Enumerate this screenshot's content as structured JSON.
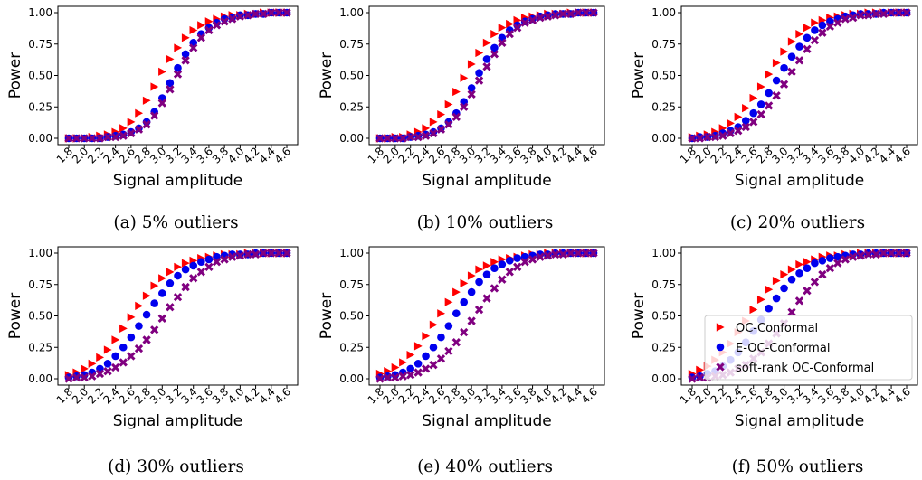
{
  "chart_data": [
    {
      "type": "scatter",
      "caption": "(a) 5% outliers",
      "xlabel": "Signal amplitude",
      "ylabel": "Power",
      "x": [
        1.8,
        1.9,
        2.0,
        2.1,
        2.2,
        2.3,
        2.4,
        2.5,
        2.6,
        2.7,
        2.8,
        2.9,
        3.0,
        3.1,
        3.2,
        3.3,
        3.4,
        3.5,
        3.6,
        3.7,
        3.8,
        3.9,
        4.0,
        4.1,
        4.2,
        4.3,
        4.4,
        4.5,
        4.6
      ],
      "xticks": [
        "1.8",
        "2.0",
        "2.2",
        "2.4",
        "2.6",
        "2.8",
        "3.0",
        "3.2",
        "3.4",
        "3.6",
        "3.8",
        "4.0",
        "4.2",
        "4.4",
        "4.6"
      ],
      "yticks": [
        "0.00",
        "0.25",
        "0.50",
        "0.75",
        "1.00"
      ],
      "xlim": [
        1.8,
        4.6
      ],
      "ylim": [
        0,
        1
      ],
      "series": [
        {
          "name": "OC-Conformal",
          "color": "#ff0000",
          "marker": "triangle-right",
          "values": [
            0.0,
            0.0,
            0.0,
            0.01,
            0.02,
            0.03,
            0.05,
            0.08,
            0.13,
            0.2,
            0.3,
            0.41,
            0.53,
            0.63,
            0.72,
            0.8,
            0.86,
            0.9,
            0.93,
            0.95,
            0.97,
            0.98,
            0.98,
            0.99,
            0.99,
            1.0,
            1.0,
            1.0,
            1.0
          ]
        },
        {
          "name": "E-OC-Conformal",
          "color": "#0000ee",
          "marker": "circle",
          "values": [
            0.0,
            0.0,
            0.0,
            0.0,
            0.0,
            0.01,
            0.02,
            0.03,
            0.05,
            0.08,
            0.13,
            0.21,
            0.32,
            0.44,
            0.56,
            0.67,
            0.76,
            0.83,
            0.88,
            0.92,
            0.95,
            0.96,
            0.98,
            0.98,
            0.99,
            0.99,
            1.0,
            1.0,
            1.0
          ]
        },
        {
          "name": "soft-rank OC-Conformal",
          "color": "#800080",
          "marker": "x",
          "values": [
            0.0,
            0.0,
            0.0,
            0.0,
            0.0,
            0.01,
            0.01,
            0.02,
            0.04,
            0.07,
            0.11,
            0.18,
            0.28,
            0.39,
            0.51,
            0.62,
            0.72,
            0.8,
            0.86,
            0.9,
            0.93,
            0.95,
            0.97,
            0.98,
            0.99,
            0.99,
            1.0,
            1.0,
            1.0
          ]
        }
      ]
    },
    {
      "type": "scatter",
      "caption": "(b) 10% outliers",
      "xlabel": "Signal amplitude",
      "ylabel": "Power",
      "x": [
        1.8,
        1.9,
        2.0,
        2.1,
        2.2,
        2.3,
        2.4,
        2.5,
        2.6,
        2.7,
        2.8,
        2.9,
        3.0,
        3.1,
        3.2,
        3.3,
        3.4,
        3.5,
        3.6,
        3.7,
        3.8,
        3.9,
        4.0,
        4.1,
        4.2,
        4.3,
        4.4,
        4.5,
        4.6
      ],
      "xticks": [
        "1.8",
        "2.0",
        "2.2",
        "2.4",
        "2.6",
        "2.8",
        "3.0",
        "3.2",
        "3.4",
        "3.6",
        "3.8",
        "4.0",
        "4.2",
        "4.4",
        "4.6"
      ],
      "yticks": [
        "0.00",
        "0.25",
        "0.50",
        "0.75",
        "1.00"
      ],
      "xlim": [
        1.8,
        4.6
      ],
      "ylim": [
        0,
        1
      ],
      "series": [
        {
          "name": "OC-Conformal",
          "color": "#ff0000",
          "marker": "triangle-right",
          "values": [
            0.0,
            0.0,
            0.01,
            0.01,
            0.03,
            0.05,
            0.08,
            0.13,
            0.19,
            0.27,
            0.37,
            0.48,
            0.59,
            0.68,
            0.76,
            0.83,
            0.88,
            0.91,
            0.94,
            0.96,
            0.97,
            0.98,
            0.99,
            0.99,
            0.99,
            1.0,
            1.0,
            1.0,
            1.0
          ]
        },
        {
          "name": "E-OC-Conformal",
          "color": "#0000ee",
          "marker": "circle",
          "values": [
            0.0,
            0.0,
            0.0,
            0.0,
            0.01,
            0.02,
            0.03,
            0.05,
            0.08,
            0.13,
            0.2,
            0.29,
            0.4,
            0.52,
            0.63,
            0.72,
            0.8,
            0.86,
            0.9,
            0.93,
            0.95,
            0.97,
            0.98,
            0.99,
            0.99,
            0.99,
            1.0,
            1.0,
            1.0
          ]
        },
        {
          "name": "soft-rank OC-Conformal",
          "color": "#800080",
          "marker": "x",
          "values": [
            0.0,
            0.0,
            0.0,
            0.0,
            0.01,
            0.01,
            0.02,
            0.04,
            0.07,
            0.11,
            0.17,
            0.25,
            0.35,
            0.46,
            0.57,
            0.67,
            0.76,
            0.83,
            0.88,
            0.92,
            0.94,
            0.96,
            0.97,
            0.98,
            0.99,
            0.99,
            1.0,
            1.0,
            1.0
          ]
        }
      ]
    },
    {
      "type": "scatter",
      "caption": "(c) 20% outliers",
      "xlabel": "Signal amplitude",
      "ylabel": "Power",
      "x": [
        1.8,
        1.9,
        2.0,
        2.1,
        2.2,
        2.3,
        2.4,
        2.5,
        2.6,
        2.7,
        2.8,
        2.9,
        3.0,
        3.1,
        3.2,
        3.3,
        3.4,
        3.5,
        3.6,
        3.7,
        3.8,
        3.9,
        4.0,
        4.1,
        4.2,
        4.3,
        4.4,
        4.5,
        4.6
      ],
      "xticks": [
        "1.8",
        "2.0",
        "2.2",
        "2.4",
        "2.6",
        "2.8",
        "3.0",
        "3.2",
        "3.4",
        "3.6",
        "3.8",
        "4.0",
        "4.2",
        "4.4",
        "4.6"
      ],
      "yticks": [
        "0.00",
        "0.25",
        "0.50",
        "0.75",
        "1.00"
      ],
      "xlim": [
        1.8,
        4.6
      ],
      "ylim": [
        0,
        1
      ],
      "series": [
        {
          "name": "OC-Conformal",
          "color": "#ff0000",
          "marker": "triangle-right",
          "values": [
            0.01,
            0.02,
            0.03,
            0.05,
            0.08,
            0.12,
            0.17,
            0.24,
            0.32,
            0.41,
            0.51,
            0.6,
            0.69,
            0.77,
            0.83,
            0.88,
            0.92,
            0.94,
            0.96,
            0.97,
            0.98,
            0.99,
            0.99,
            1.0,
            1.0,
            1.0,
            1.0,
            1.0,
            1.0
          ]
        },
        {
          "name": "E-OC-Conformal",
          "color": "#0000ee",
          "marker": "circle",
          "values": [
            0.0,
            0.01,
            0.01,
            0.02,
            0.04,
            0.06,
            0.09,
            0.14,
            0.2,
            0.27,
            0.36,
            0.46,
            0.56,
            0.65,
            0.73,
            0.8,
            0.86,
            0.9,
            0.93,
            0.95,
            0.97,
            0.98,
            0.99,
            0.99,
            0.99,
            1.0,
            1.0,
            1.0,
            1.0
          ]
        },
        {
          "name": "soft-rank OC-Conformal",
          "color": "#800080",
          "marker": "x",
          "values": [
            0.0,
            0.0,
            0.01,
            0.01,
            0.02,
            0.04,
            0.06,
            0.09,
            0.13,
            0.19,
            0.26,
            0.34,
            0.43,
            0.53,
            0.62,
            0.71,
            0.78,
            0.84,
            0.89,
            0.92,
            0.95,
            0.96,
            0.98,
            0.98,
            0.99,
            0.99,
            1.0,
            1.0,
            1.0
          ]
        }
      ]
    },
    {
      "type": "scatter",
      "caption": "(d) 30% outliers",
      "xlabel": "Signal amplitude",
      "ylabel": "Power",
      "x": [
        1.8,
        1.9,
        2.0,
        2.1,
        2.2,
        2.3,
        2.4,
        2.5,
        2.6,
        2.7,
        2.8,
        2.9,
        3.0,
        3.1,
        3.2,
        3.3,
        3.4,
        3.5,
        3.6,
        3.7,
        3.8,
        3.9,
        4.0,
        4.1,
        4.2,
        4.3,
        4.4,
        4.5,
        4.6
      ],
      "xticks": [
        "1.8",
        "2.0",
        "2.2",
        "2.4",
        "2.6",
        "2.8",
        "3.0",
        "3.2",
        "3.4",
        "3.6",
        "3.8",
        "4.0",
        "4.2",
        "4.4",
        "4.6"
      ],
      "yticks": [
        "0.00",
        "0.25",
        "0.50",
        "0.75",
        "1.00"
      ],
      "xlim": [
        1.8,
        4.6
      ],
      "ylim": [
        0,
        1
      ],
      "series": [
        {
          "name": "OC-Conformal",
          "color": "#ff0000",
          "marker": "triangle-right",
          "values": [
            0.03,
            0.05,
            0.08,
            0.12,
            0.17,
            0.23,
            0.31,
            0.4,
            0.49,
            0.58,
            0.66,
            0.74,
            0.8,
            0.85,
            0.89,
            0.92,
            0.94,
            0.96,
            0.97,
            0.98,
            0.99,
            0.99,
            0.99,
            1.0,
            1.0,
            1.0,
            1.0,
            1.0,
            1.0
          ]
        },
        {
          "name": "E-OC-Conformal",
          "color": "#0000ee",
          "marker": "circle",
          "values": [
            0.01,
            0.02,
            0.03,
            0.05,
            0.08,
            0.12,
            0.18,
            0.25,
            0.33,
            0.42,
            0.51,
            0.6,
            0.68,
            0.76,
            0.82,
            0.87,
            0.9,
            0.93,
            0.95,
            0.97,
            0.98,
            0.99,
            0.99,
            0.99,
            1.0,
            1.0,
            1.0,
            1.0,
            1.0
          ]
        },
        {
          "name": "soft-rank OC-Conformal",
          "color": "#800080",
          "marker": "x",
          "values": [
            0.0,
            0.01,
            0.01,
            0.02,
            0.04,
            0.06,
            0.09,
            0.13,
            0.18,
            0.24,
            0.31,
            0.39,
            0.48,
            0.57,
            0.65,
            0.73,
            0.8,
            0.85,
            0.89,
            0.93,
            0.95,
            0.97,
            0.98,
            0.99,
            0.99,
            1.0,
            1.0,
            1.0,
            1.0
          ]
        }
      ]
    },
    {
      "type": "scatter",
      "caption": "(e) 40% outliers",
      "xlabel": "Signal amplitude",
      "ylabel": "Power",
      "x": [
        1.8,
        1.9,
        2.0,
        2.1,
        2.2,
        2.3,
        2.4,
        2.5,
        2.6,
        2.7,
        2.8,
        2.9,
        3.0,
        3.1,
        3.2,
        3.3,
        3.4,
        3.5,
        3.6,
        3.7,
        3.8,
        3.9,
        4.0,
        4.1,
        4.2,
        4.3,
        4.4,
        4.5,
        4.6
      ],
      "xticks": [
        "1.8",
        "2.0",
        "2.2",
        "2.4",
        "2.6",
        "2.8",
        "3.0",
        "3.2",
        "3.4",
        "3.6",
        "3.8",
        "4.0",
        "4.2",
        "4.4",
        "4.6"
      ],
      "yticks": [
        "0.00",
        "0.25",
        "0.50",
        "0.75",
        "1.00"
      ],
      "xlim": [
        1.8,
        4.6
      ],
      "ylim": [
        0,
        1
      ],
      "series": [
        {
          "name": "OC-Conformal",
          "color": "#ff0000",
          "marker": "triangle-right",
          "values": [
            0.04,
            0.06,
            0.09,
            0.13,
            0.19,
            0.26,
            0.34,
            0.43,
            0.52,
            0.61,
            0.69,
            0.76,
            0.82,
            0.87,
            0.9,
            0.93,
            0.95,
            0.96,
            0.97,
            0.98,
            0.99,
            0.99,
            1.0,
            1.0,
            1.0,
            1.0,
            1.0,
            1.0,
            1.0
          ]
        },
        {
          "name": "E-OC-Conformal",
          "color": "#0000ee",
          "marker": "circle",
          "values": [
            0.01,
            0.02,
            0.03,
            0.05,
            0.08,
            0.12,
            0.18,
            0.25,
            0.33,
            0.42,
            0.52,
            0.61,
            0.69,
            0.77,
            0.83,
            0.88,
            0.91,
            0.94,
            0.96,
            0.97,
            0.98,
            0.99,
            0.99,
            1.0,
            1.0,
            1.0,
            1.0,
            1.0,
            1.0
          ]
        },
        {
          "name": "soft-rank OC-Conformal",
          "color": "#800080",
          "marker": "x",
          "values": [
            0.0,
            0.01,
            0.01,
            0.02,
            0.03,
            0.05,
            0.08,
            0.11,
            0.16,
            0.22,
            0.29,
            0.37,
            0.46,
            0.55,
            0.64,
            0.72,
            0.79,
            0.85,
            0.89,
            0.93,
            0.95,
            0.97,
            0.98,
            0.99,
            0.99,
            1.0,
            1.0,
            1.0,
            1.0
          ]
        }
      ]
    },
    {
      "type": "scatter",
      "caption": "(f) 50% outliers",
      "xlabel": "Signal amplitude",
      "ylabel": "Power",
      "x": [
        1.8,
        1.9,
        2.0,
        2.1,
        2.2,
        2.3,
        2.4,
        2.5,
        2.6,
        2.7,
        2.8,
        2.9,
        3.0,
        3.1,
        3.2,
        3.3,
        3.4,
        3.5,
        3.6,
        3.7,
        3.8,
        3.9,
        4.0,
        4.1,
        4.2,
        4.3,
        4.4,
        4.5,
        4.6
      ],
      "xticks": [
        "1.8",
        "2.0",
        "2.2",
        "2.4",
        "2.6",
        "2.8",
        "3.0",
        "3.2",
        "3.4",
        "3.6",
        "3.8",
        "4.0",
        "4.2",
        "4.4",
        "4.6"
      ],
      "yticks": [
        "0.00",
        "0.25",
        "0.50",
        "0.75",
        "1.00"
      ],
      "xlim": [
        1.8,
        4.6
      ],
      "ylim": [
        0,
        1
      ],
      "legend": "lower-right",
      "series": [
        {
          "name": "OC-Conformal",
          "color": "#ff0000",
          "marker": "triangle-right",
          "values": [
            0.04,
            0.07,
            0.1,
            0.15,
            0.21,
            0.28,
            0.37,
            0.46,
            0.55,
            0.63,
            0.71,
            0.78,
            0.83,
            0.87,
            0.91,
            0.93,
            0.95,
            0.97,
            0.98,
            0.98,
            0.99,
            0.99,
            1.0,
            1.0,
            1.0,
            1.0,
            1.0,
            1.0,
            1.0
          ]
        },
        {
          "name": "E-OC-Conformal",
          "color": "#0000ee",
          "marker": "circle",
          "values": [
            0.01,
            0.02,
            0.04,
            0.06,
            0.1,
            0.15,
            0.21,
            0.29,
            0.38,
            0.47,
            0.56,
            0.64,
            0.72,
            0.79,
            0.84,
            0.88,
            0.92,
            0.94,
            0.96,
            0.97,
            0.98,
            0.99,
            0.99,
            1.0,
            1.0,
            1.0,
            1.0,
            1.0,
            1.0
          ]
        },
        {
          "name": "soft-rank OC-Conformal",
          "color": "#800080",
          "marker": "x",
          "values": [
            0.0,
            0.01,
            0.01,
            0.02,
            0.03,
            0.05,
            0.08,
            0.11,
            0.16,
            0.21,
            0.28,
            0.36,
            0.44,
            0.53,
            0.62,
            0.7,
            0.77,
            0.83,
            0.88,
            0.92,
            0.95,
            0.97,
            0.98,
            0.99,
            0.99,
            1.0,
            1.0,
            1.0,
            1.0
          ]
        }
      ]
    }
  ]
}
